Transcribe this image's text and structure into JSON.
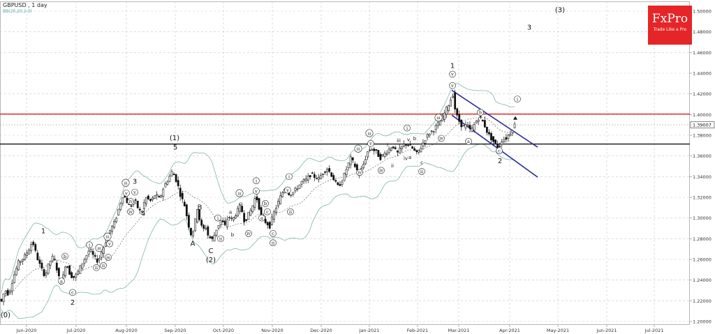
{
  "header": {
    "symbol": "GBPUSD",
    "timeframe": "1 day",
    "indicator": "BB(20,20,2.0)"
  },
  "logo": {
    "brand": "FxPro",
    "tagline": "Trade Like a Pro"
  },
  "colors": {
    "resistance": "#e31c1c",
    "support": "#111111",
    "channel": "#2c2c9e",
    "bands": "#7fb5b0",
    "candle": "#111111",
    "current_label": "#ffffff"
  },
  "chart_data": {
    "type": "candlestick",
    "y_ticks": [
      "1.20000",
      "1.22000",
      "1.24000",
      "1.26000",
      "1.28000",
      "1.30000",
      "1.32000",
      "1.34000",
      "1.36000",
      "1.38000",
      "1.40000",
      "1.42000",
      "1.44000",
      "1.46000",
      "1.48000",
      "1.50000"
    ],
    "x_ticks": [
      "Jun-2020",
      "Jul-2020",
      "Aug-2020",
      "Sep-2020",
      "Oct-2020",
      "Nov-2020",
      "Dec-2020",
      "Jan-2021",
      "Feb-2021",
      "Mar-2021",
      "Apr-2021",
      "May-2021",
      "Jun-2021",
      "Jul-2021"
    ],
    "ylim": [
      1.1965,
      1.5055
    ],
    "current_price": "1.39007",
    "levels": [
      {
        "name": "resistance",
        "value": 1.4005
      },
      {
        "name": "support",
        "value": 1.3715
      }
    ],
    "price_path": [
      [
        0,
        1.222
      ],
      [
        4,
        1.219
      ],
      [
        8,
        1.231
      ],
      [
        14,
        1.226
      ],
      [
        20,
        1.242
      ],
      [
        28,
        1.257
      ],
      [
        36,
        1.262
      ],
      [
        44,
        1.271
      ],
      [
        48,
        1.278
      ],
      [
        54,
        1.263
      ],
      [
        60,
        1.252
      ],
      [
        66,
        1.244
      ],
      [
        72,
        1.257
      ],
      [
        78,
        1.263
      ],
      [
        84,
        1.248
      ],
      [
        88,
        1.236
      ],
      [
        92,
        1.244
      ],
      [
        96,
        1.258
      ],
      [
        100,
        1.248
      ],
      [
        106,
        1.242
      ],
      [
        112,
        1.246
      ],
      [
        118,
        1.255
      ],
      [
        124,
        1.262
      ],
      [
        130,
        1.27
      ],
      [
        136,
        1.262
      ],
      [
        142,
        1.258
      ],
      [
        146,
        1.266
      ],
      [
        150,
        1.272
      ],
      [
        158,
        1.287
      ],
      [
        166,
        1.296
      ],
      [
        172,
        1.31
      ],
      [
        178,
        1.323
      ],
      [
        184,
        1.315
      ],
      [
        188,
        1.31
      ],
      [
        194,
        1.318
      ],
      [
        200,
        1.308
      ],
      [
        204,
        1.305
      ],
      [
        210,
        1.32
      ],
      [
        218,
        1.316
      ],
      [
        224,
        1.323
      ],
      [
        230,
        1.318
      ],
      [
        236,
        1.33
      ],
      [
        242,
        1.337
      ],
      [
        248,
        1.345
      ],
      [
        252,
        1.34
      ],
      [
        256,
        1.332
      ],
      [
        260,
        1.322
      ],
      [
        266,
        1.312
      ],
      [
        272,
        1.292
      ],
      [
        276,
        1.282
      ],
      [
        280,
        1.293
      ],
      [
        284,
        1.31
      ],
      [
        288,
        1.296
      ],
      [
        292,
        1.288
      ],
      [
        296,
        1.292
      ],
      [
        300,
        1.282
      ],
      [
        306,
        1.279
      ],
      [
        312,
        1.29
      ],
      [
        318,
        1.298
      ],
      [
        324,
        1.292
      ],
      [
        328,
        1.302
      ],
      [
        334,
        1.298
      ],
      [
        340,
        1.305
      ],
      [
        346,
        1.312
      ],
      [
        352,
        1.296
      ],
      [
        356,
        1.302
      ],
      [
        362,
        1.309
      ],
      [
        368,
        1.322
      ],
      [
        372,
        1.312
      ],
      [
        376,
        1.3
      ],
      [
        382,
        1.296
      ],
      [
        388,
        1.292
      ],
      [
        392,
        1.302
      ],
      [
        398,
        1.312
      ],
      [
        404,
        1.322
      ],
      [
        410,
        1.33
      ],
      [
        416,
        1.323
      ],
      [
        422,
        1.325
      ],
      [
        428,
        1.33
      ],
      [
        434,
        1.335
      ],
      [
        440,
        1.337
      ],
      [
        446,
        1.342
      ],
      [
        452,
        1.34
      ],
      [
        458,
        1.338
      ],
      [
        464,
        1.344
      ],
      [
        470,
        1.348
      ],
      [
        476,
        1.342
      ],
      [
        482,
        1.334
      ],
      [
        486,
        1.33
      ],
      [
        492,
        1.337
      ],
      [
        498,
        1.348
      ],
      [
        504,
        1.358
      ],
      [
        510,
        1.35
      ],
      [
        516,
        1.342
      ],
      [
        522,
        1.352
      ],
      [
        528,
        1.364
      ],
      [
        534,
        1.367
      ],
      [
        540,
        1.364
      ],
      [
        546,
        1.358
      ],
      [
        552,
        1.362
      ],
      [
        558,
        1.366
      ],
      [
        564,
        1.37
      ],
      [
        570,
        1.362
      ],
      [
        576,
        1.368
      ],
      [
        582,
        1.372
      ],
      [
        588,
        1.37
      ],
      [
        594,
        1.366
      ],
      [
        598,
        1.362
      ],
      [
        604,
        1.368
      ],
      [
        610,
        1.376
      ],
      [
        616,
        1.382
      ],
      [
        622,
        1.385
      ],
      [
        628,
        1.39
      ],
      [
        634,
        1.396
      ],
      [
        640,
        1.404
      ],
      [
        646,
        1.413
      ],
      [
        650,
        1.42
      ],
      [
        654,
        1.402
      ],
      [
        658,
        1.395
      ],
      [
        664,
        1.388
      ],
      [
        670,
        1.39
      ],
      [
        676,
        1.384
      ],
      [
        682,
        1.392
      ],
      [
        688,
        1.398
      ],
      [
        694,
        1.392
      ],
      [
        700,
        1.382
      ],
      [
        706,
        1.376
      ],
      [
        710,
        1.372
      ],
      [
        716,
        1.368
      ],
      [
        720,
        1.375
      ],
      [
        726,
        1.377
      ],
      [
        732,
        1.382
      ],
      [
        738,
        1.39
      ]
    ],
    "channel": {
      "upper": [
        [
          647,
          1.4235
        ],
        [
          770,
          1.3685
        ]
      ],
      "lower": [
        [
          647,
          1.3995
        ],
        [
          770,
          1.3395
        ]
      ]
    },
    "wave_labels": [
      {
        "text": "(0)",
        "x": 8,
        "y": 1.2055,
        "style": "plain"
      },
      {
        "text": "1",
        "x": 62,
        "y": 1.2865,
        "style": "plain"
      },
      {
        "text": "a",
        "x": 88,
        "y": 1.2375,
        "style": "circle"
      },
      {
        "text": "b",
        "x": 93,
        "y": 1.2615,
        "style": "circle"
      },
      {
        "text": "c",
        "x": 104,
        "y": 1.2265,
        "style": "circle"
      },
      {
        "text": "2",
        "x": 104,
        "y": 1.2175,
        "style": "plain"
      },
      {
        "text": "i",
        "x": 128,
        "y": 1.2725,
        "style": "circle"
      },
      {
        "text": "ii",
        "x": 138,
        "y": 1.2505,
        "style": "circle"
      },
      {
        "text": "iii",
        "x": 142,
        "y": 1.2695,
        "style": "circle"
      },
      {
        "text": "iv",
        "x": 155,
        "y": 1.2605,
        "style": "circle"
      },
      {
        "text": "ii",
        "x": 148,
        "y": 1.2525,
        "style": "circle"
      },
      {
        "text": "v",
        "x": 157,
        "y": 1.2735,
        "style": "circle"
      },
      {
        "text": "iii",
        "x": 154,
        "y": 1.2805,
        "style": "circle"
      },
      {
        "text": "iv",
        "x": 187,
        "y": 1.3045,
        "style": "circle"
      },
      {
        "text": "v",
        "x": 181,
        "y": 1.3225,
        "style": "circle"
      },
      {
        "text": "iii",
        "x": 180,
        "y": 1.3325,
        "style": "circle"
      },
      {
        "text": "3",
        "x": 193,
        "y": 1.3345,
        "style": "plain"
      },
      {
        "text": "iv",
        "x": 187,
        "y": 1.3145,
        "style": "circle"
      },
      {
        "text": "v",
        "x": 193,
        "y": 1.3235,
        "style": "circle"
      },
      {
        "text": "4",
        "x": 205,
        "y": 1.3035,
        "style": "plain"
      },
      {
        "text": "(1)",
        "x": 250,
        "y": 1.3765,
        "style": "plain"
      },
      {
        "text": "5",
        "x": 251,
        "y": 1.3675,
        "style": "plain"
      },
      {
        "text": "B",
        "x": 286,
        "y": 1.3095,
        "style": "plain"
      },
      {
        "text": "A",
        "x": 276,
        "y": 1.2745,
        "style": "plain"
      },
      {
        "text": "C",
        "x": 302,
        "y": 1.2675,
        "style": "plain"
      },
      {
        "text": "(2)",
        "x": 302,
        "y": 1.2585,
        "style": "plain"
      },
      {
        "text": "i",
        "x": 312,
        "y": 1.2985,
        "style": "circle"
      },
      {
        "text": "ii",
        "x": 316,
        "y": 1.2785,
        "style": "circle"
      },
      {
        "text": "a",
        "x": 330,
        "y": 1.3055,
        "style": "plain"
      },
      {
        "text": "iii",
        "x": 343,
        "y": 1.3225,
        "style": "circle"
      },
      {
        "text": "c",
        "x": 344,
        "y": 1.3135,
        "style": "plain"
      },
      {
        "text": "b",
        "x": 333,
        "y": 1.2835,
        "style": "plain"
      },
      {
        "text": "iv",
        "x": 356,
        "y": 1.2835,
        "style": "circle"
      },
      {
        "text": "i",
        "x": 367,
        "y": 1.3345,
        "style": "circle"
      },
      {
        "text": "v",
        "x": 367,
        "y": 1.3245,
        "style": "circle"
      },
      {
        "text": "a",
        "x": 375,
        "y": 1.2985,
        "style": "circle"
      },
      {
        "text": "b",
        "x": 380,
        "y": 1.3125,
        "style": "circle"
      },
      {
        "text": "c",
        "x": 383,
        "y": 1.3045,
        "style": "circle"
      },
      {
        "text": "c",
        "x": 391,
        "y": 1.2835,
        "style": "circle"
      },
      {
        "text": "ii",
        "x": 391,
        "y": 1.2745,
        "style": "circle"
      },
      {
        "text": "i",
        "x": 414,
        "y": 1.3385,
        "style": "circle"
      },
      {
        "text": "v",
        "x": 412,
        "y": 1.3255,
        "style": "circle"
      },
      {
        "text": "ii",
        "x": 416,
        "y": 1.3045,
        "style": "circle"
      },
      {
        "text": "iv",
        "x": 515,
        "y": 1.3425,
        "style": "circle"
      },
      {
        "text": "iii",
        "x": 513,
        "y": 1.3655,
        "style": "circle"
      },
      {
        "text": "iii",
        "x": 529,
        "y": 1.3805,
        "style": "circle"
      },
      {
        "text": "v",
        "x": 531,
        "y": 1.3705,
        "style": "circle"
      },
      {
        "text": "i",
        "x": 555,
        "y": 1.3705,
        "style": "plain"
      },
      {
        "text": "ii",
        "x": 562,
        "y": 1.3505,
        "style": "plain"
      },
      {
        "text": "iv",
        "x": 546,
        "y": 1.3445,
        "style": "circle"
      },
      {
        "text": "iii",
        "x": 571,
        "y": 1.3745,
        "style": "plain"
      },
      {
        "text": "iv",
        "x": 581,
        "y": 1.3575,
        "style": "plain"
      },
      {
        "text": "a",
        "x": 587,
        "y": 1.3585,
        "style": "plain"
      },
      {
        "text": "v",
        "x": 585,
        "y": 1.3755,
        "style": "plain"
      },
      {
        "text": "b",
        "x": 594,
        "y": 1.3765,
        "style": "plain"
      },
      {
        "text": "i",
        "x": 583,
        "y": 1.3855,
        "style": "circle"
      },
      {
        "text": "c",
        "x": 604,
        "y": 1.3535,
        "style": "plain"
      },
      {
        "text": "ii",
        "x": 604,
        "y": 1.3435,
        "style": "circle"
      },
      {
        "text": "iii",
        "x": 628,
        "y": 1.3955,
        "style": "circle"
      },
      {
        "text": "iv",
        "x": 632,
        "y": 1.3755,
        "style": "circle"
      },
      {
        "text": "1",
        "x": 648,
        "y": 1.4465,
        "style": "plain"
      },
      {
        "text": "v",
        "x": 648,
        "y": 1.4375,
        "style": "circle"
      },
      {
        "text": "v",
        "x": 648,
        "y": 1.4265,
        "style": "circle"
      },
      {
        "text": "b",
        "x": 688,
        "y": 1.4005,
        "style": "circle"
      },
      {
        "text": "a",
        "x": 671,
        "y": 1.3725,
        "style": "circle"
      },
      {
        "text": "c",
        "x": 715,
        "y": 1.3635,
        "style": "circle"
      },
      {
        "text": "2",
        "x": 716,
        "y": 1.3545,
        "style": "plain"
      },
      {
        "text": "i",
        "x": 741,
        "y": 1.4135,
        "style": "circle"
      },
      {
        "text": "3",
        "x": 758,
        "y": 1.4835,
        "style": "plain"
      },
      {
        "text": "(3)",
        "x": 802,
        "y": 1.5005,
        "style": "plain"
      }
    ]
  }
}
